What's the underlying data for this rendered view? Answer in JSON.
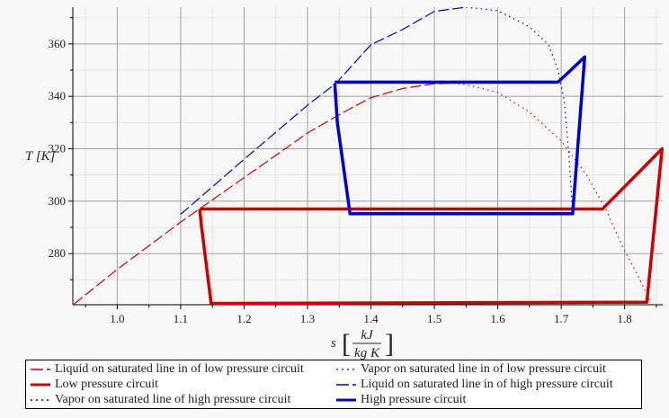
{
  "chart_data": {
    "type": "line",
    "xlabel": "s",
    "xlabel_unit_num": "kJ",
    "xlabel_unit_den": "kg K",
    "ylabel": "T [K]",
    "xlim": [
      0.93,
      1.86
    ],
    "ylim": [
      260.5,
      374
    ],
    "xticks": [
      "1.0",
      "1.1",
      "1.2",
      "1.3",
      "1.4",
      "1.5",
      "1.6",
      "1.7",
      "1.8"
    ],
    "yticks": [
      "280",
      "300",
      "320",
      "340",
      "360"
    ],
    "grid": true,
    "legend_placement": "bottom",
    "series": [
      {
        "name": "Liquid on saturated line in of low pressure circuit",
        "color": "#cc0000",
        "style": "dash",
        "width": "thin",
        "x": [
          0.932,
          1.0,
          1.1,
          1.2,
          1.3,
          1.35,
          1.4,
          1.45,
          1.5,
          1.53
        ],
        "y": [
          260.8,
          274,
          292,
          309,
          326,
          333,
          339.5,
          343,
          344.8,
          345
        ]
      },
      {
        "name": "Vapor on saturated line in of low pressure circuit",
        "color": "#cc0000",
        "style": "dot",
        "width": "thin",
        "x": [
          1.53,
          1.55,
          1.6,
          1.65,
          1.7,
          1.74,
          1.77,
          1.8,
          1.82,
          1.84
        ],
        "y": [
          345,
          344.5,
          341.5,
          334,
          323,
          310,
          297,
          281,
          272,
          262
        ]
      },
      {
        "name": "Low pressure circuit",
        "color": "#cc0000",
        "style": "solid",
        "width": "thick",
        "x": [
          1.13,
          1.133,
          1.148,
          1.835,
          1.859,
          1.765,
          1.13
        ],
        "y": [
          297,
          290,
          261,
          261.5,
          320,
          297,
          297
        ]
      },
      {
        "name": "Liquid on saturated line in of high pressure circuit",
        "color": "#0000cc",
        "style": "dash",
        "width": "thin",
        "x": [
          1.1,
          1.2,
          1.3,
          1.345,
          1.4,
          1.45,
          1.5,
          1.55
        ],
        "y": [
          295,
          316,
          336.6,
          345,
          359.7,
          365.5,
          372.4,
          374
        ]
      },
      {
        "name": "Vapor on saturated line of high pressure circuit",
        "color": "#0000cc",
        "style": "dot",
        "width": "thin",
        "x": [
          1.55,
          1.6,
          1.65,
          1.68,
          1.695,
          1.705,
          1.712,
          1.716,
          1.718
        ],
        "y": [
          374,
          372.7,
          366.5,
          359.7,
          350,
          338,
          318,
          303,
          295
        ]
      },
      {
        "name": "High pressure circuit",
        "color": "#0000cc",
        "style": "solid",
        "width": "thick",
        "x": [
          1.343,
          1.347,
          1.367,
          1.718,
          1.737,
          1.695,
          1.343
        ],
        "y": [
          345,
          330,
          295.2,
          295.2,
          355,
          345.4,
          345.4
        ]
      }
    ]
  }
}
